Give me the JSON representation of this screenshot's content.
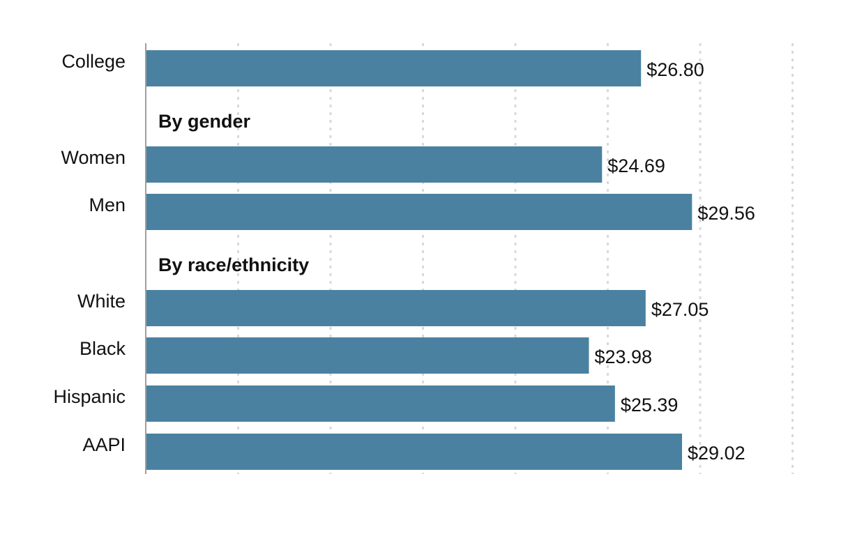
{
  "chart_data": {
    "type": "bar",
    "orientation": "horizontal",
    "title": "",
    "xlabel": "",
    "ylabel": "",
    "xlim": [
      0,
      35
    ],
    "grid": "vertical dotted gridlines every 5",
    "legend": "none",
    "value_prefix": "$",
    "colors": {
      "bar": "#4a81a1",
      "grid": "#d9d9d9",
      "axis": "#9e9e9e",
      "text": "#111111"
    },
    "rows": [
      {
        "kind": "bar",
        "category": "College",
        "value": 26.8,
        "value_label": "$26.80"
      },
      {
        "kind": "header",
        "text": "By gender"
      },
      {
        "kind": "bar",
        "category": "Women",
        "value": 24.69,
        "value_label": "$24.69"
      },
      {
        "kind": "bar",
        "category": "Men",
        "value": 29.56,
        "value_label": "$29.56"
      },
      {
        "kind": "header",
        "text": "By race/ethnicity"
      },
      {
        "kind": "bar",
        "category": "White",
        "value": 27.05,
        "value_label": "$27.05"
      },
      {
        "kind": "bar",
        "category": "Black",
        "value": 23.98,
        "value_label": "$23.98"
      },
      {
        "kind": "bar",
        "category": "Hispanic",
        "value": 25.39,
        "value_label": "$25.39"
      },
      {
        "kind": "bar",
        "category": "AAPI",
        "value": 29.02,
        "value_label": "$29.02"
      }
    ]
  }
}
